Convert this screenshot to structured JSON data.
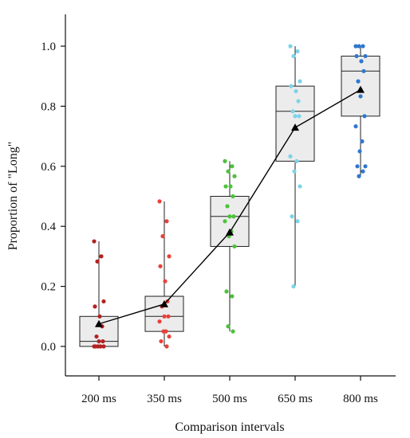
{
  "chart_data": {
    "type": "box",
    "xlabel": "Comparison intervals",
    "ylabel": "Proportion of \"Long\"",
    "ylim": [
      -0.1,
      1.1
    ],
    "yticks": [
      "0.0",
      "0.2",
      "0.4",
      "0.6",
      "0.8",
      "1.0"
    ],
    "categories": [
      "200 ms",
      "350 ms",
      "500 ms",
      "650 ms",
      "800 ms"
    ],
    "point_colors": [
      "#b22222",
      "#e8413a",
      "#4cc23a",
      "#7dd3e8",
      "#2f77d0"
    ],
    "box_fill": "#ececec",
    "boxes": [
      {
        "whisker_low": 0.0,
        "q1": 0.0,
        "median": 0.017,
        "q3": 0.1,
        "whisker_high": 0.35
      },
      {
        "whisker_low": 0.0,
        "q1": 0.05,
        "median": 0.1,
        "q3": 0.167,
        "whisker_high": 0.483
      },
      {
        "whisker_low": 0.05,
        "q1": 0.333,
        "median": 0.433,
        "q3": 0.5,
        "whisker_high": 0.617
      },
      {
        "whisker_low": 0.2,
        "q1": 0.617,
        "median": 0.783,
        "q3": 0.867,
        "whisker_high": 1.0
      },
      {
        "whisker_low": 0.567,
        "q1": 0.767,
        "median": 0.917,
        "q3": 0.967,
        "whisker_high": 1.0
      }
    ],
    "points": [
      [
        0.35,
        0.3,
        0.283,
        0.15,
        0.133,
        0.1,
        0.067,
        0.033,
        0.017,
        0.017,
        0.0,
        0.0,
        0.0,
        0.0,
        0.0
      ],
      [
        0.483,
        0.417,
        0.367,
        0.3,
        0.267,
        0.217,
        0.15,
        0.133,
        0.1,
        0.1,
        0.083,
        0.05,
        0.05,
        0.033,
        0.017,
        0.0
      ],
      [
        0.617,
        0.6,
        0.583,
        0.567,
        0.533,
        0.533,
        0.5,
        0.467,
        0.433,
        0.433,
        0.417,
        0.383,
        0.367,
        0.333,
        0.183,
        0.167,
        0.067,
        0.05
      ],
      [
        1.0,
        0.983,
        0.967,
        0.883,
        0.867,
        0.85,
        0.817,
        0.783,
        0.767,
        0.767,
        0.633,
        0.617,
        0.583,
        0.533,
        0.433,
        0.417,
        0.2
      ],
      [
        1.0,
        1.0,
        1.0,
        0.967,
        0.967,
        0.95,
        0.917,
        0.883,
        0.833,
        0.767,
        0.733,
        0.683,
        0.65,
        0.6,
        0.6,
        0.583,
        0.567
      ]
    ],
    "means": [
      0.075,
      0.141,
      0.38,
      0.729,
      0.855
    ],
    "mean_marker": "triangle",
    "mean_line_color": "#000000"
  }
}
